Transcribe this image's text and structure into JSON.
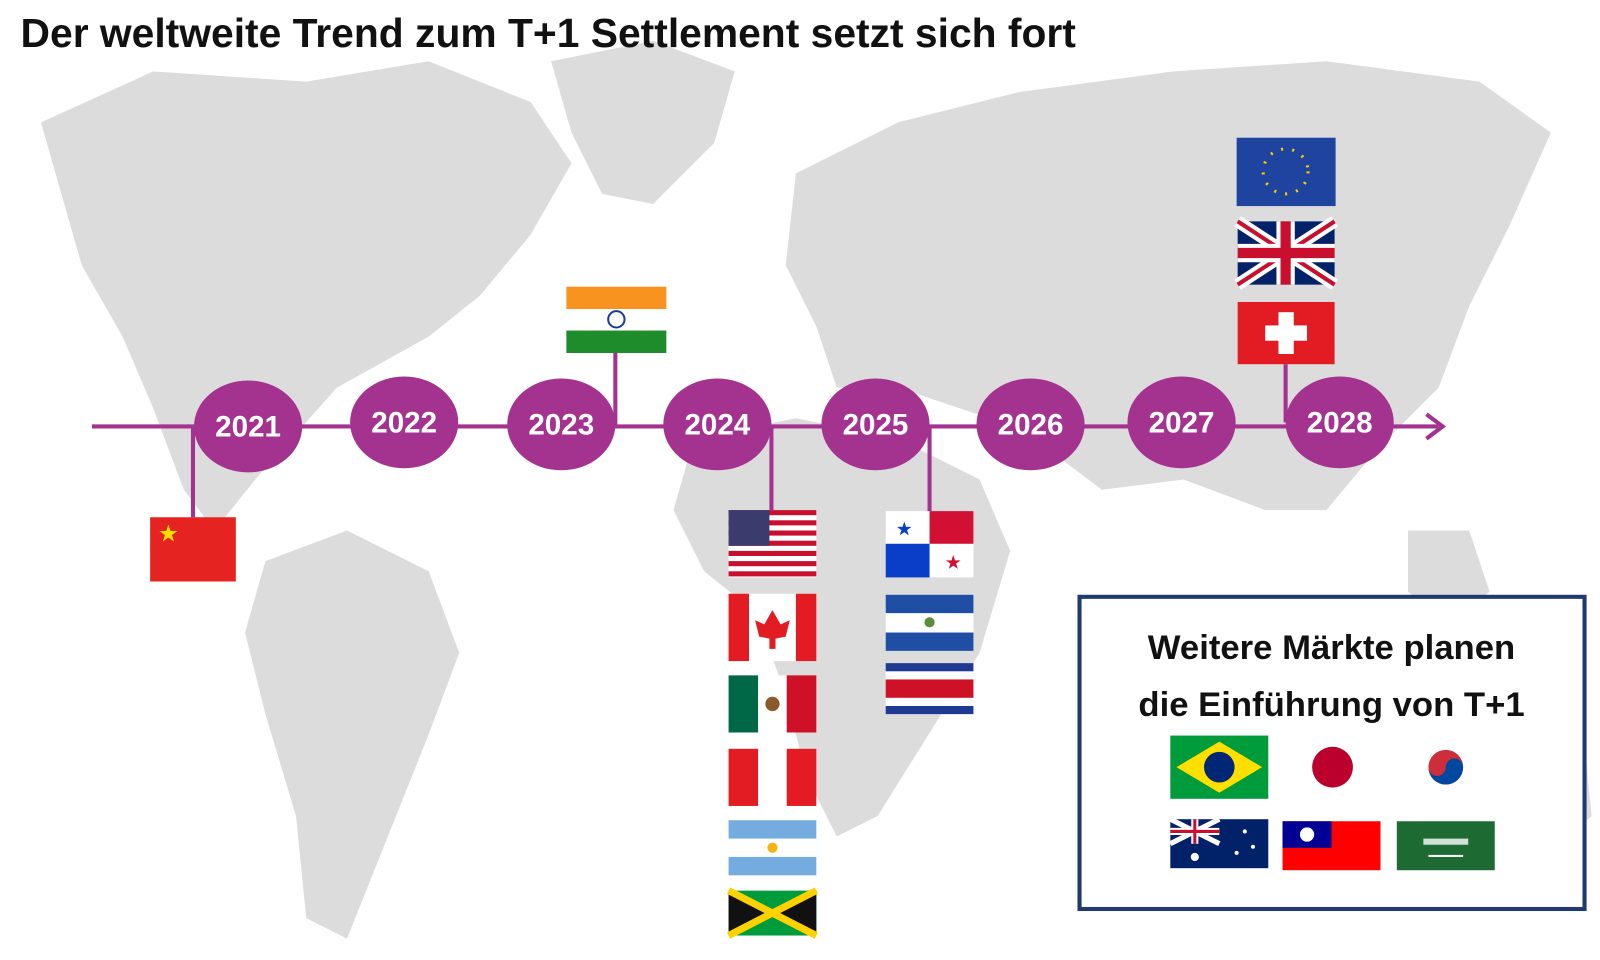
{
  "title": "Der weltweite Trend zum T+1 Settlement setzt sich fort",
  "timeline": {
    "years": [
      "2021",
      "2022",
      "2023",
      "2024",
      "2025",
      "2026",
      "2027",
      "2028"
    ]
  },
  "box": {
    "lines": [
      "Weitere Märkte planen",
      "die Einführung von T+1"
    ]
  }
}
